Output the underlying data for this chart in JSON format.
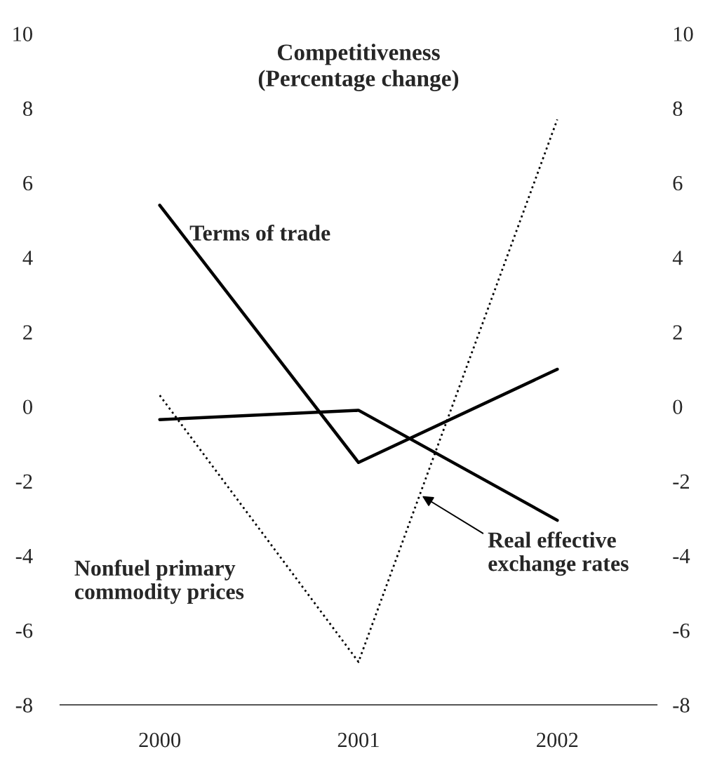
{
  "chart_data": {
    "type": "line",
    "title": "Competitiveness\n(Percentage change)",
    "categories": [
      "2000",
      "2001",
      "2002"
    ],
    "series": [
      {
        "name": "Terms of trade",
        "color": "#000000",
        "line_style": "solid",
        "values": [
          5.4,
          -1.5,
          1.0
        ]
      },
      {
        "name": "Real effective\nexchange rates",
        "color": "#000000",
        "line_style": "solid",
        "values": [
          -0.35,
          -0.1,
          -3.05
        ]
      },
      {
        "name": "Nonfuel primary\ncommodity prices",
        "color": "#000000",
        "line_style": "dotted",
        "values": [
          0.3,
          -6.85,
          7.7
        ]
      }
    ],
    "ylim": [
      -8,
      10
    ],
    "yticks": [
      -8,
      -6,
      -4,
      -2,
      0,
      2,
      4,
      6,
      8,
      10
    ],
    "y2lim": [
      -8,
      10
    ],
    "y2ticks": [
      -8,
      -6,
      -4,
      -2,
      0,
      2,
      4,
      6,
      8,
      10
    ],
    "grid": false,
    "legend": false,
    "marker": "none"
  }
}
